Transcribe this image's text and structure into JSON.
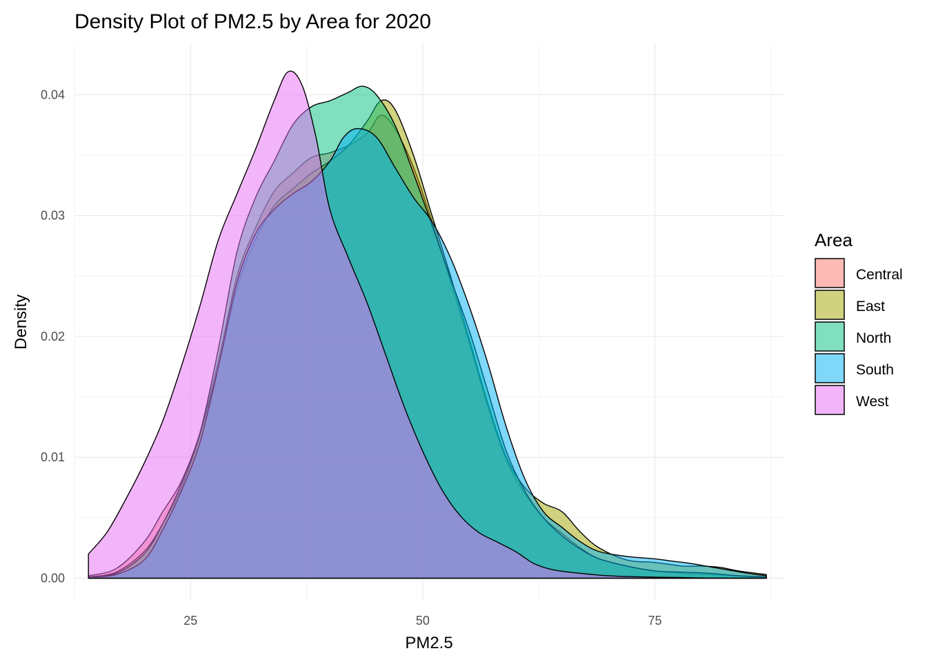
{
  "chart_data": {
    "type": "area",
    "title": "Density Plot of PM2.5 by Area for 2020",
    "xlabel": "PM2.5",
    "ylabel": "Density",
    "xlim": [
      12.5,
      89.0
    ],
    "ylim": [
      -0.0018,
      0.0443
    ],
    "x_major_ticks": [
      25,
      50,
      75
    ],
    "x_tick_labels": [
      "25",
      "50",
      "75"
    ],
    "y_major_ticks": [
      0.0,
      0.01,
      0.02,
      0.03,
      0.04
    ],
    "y_tick_labels": [
      "0.00",
      "0.01",
      "0.02",
      "0.03",
      "0.04"
    ],
    "grid": true,
    "legend": {
      "title": "Area",
      "position": "right"
    },
    "series": [
      {
        "name": "Central",
        "color": "#F8766D",
        "points": [
          [
            14,
            0.0002
          ],
          [
            17,
            0.0008
          ],
          [
            20,
            0.003
          ],
          [
            22,
            0.0055
          ],
          [
            24,
            0.008
          ],
          [
            26,
            0.012
          ],
          [
            28,
            0.018
          ],
          [
            30,
            0.025
          ],
          [
            32,
            0.029
          ],
          [
            34,
            0.032
          ],
          [
            36,
            0.0335
          ],
          [
            38,
            0.0348
          ],
          [
            40,
            0.0352
          ],
          [
            42,
            0.0358
          ],
          [
            44,
            0.0368
          ],
          [
            45.5,
            0.0383
          ],
          [
            47,
            0.0372
          ],
          [
            49,
            0.034
          ],
          [
            51,
            0.0295
          ],
          [
            53,
            0.0245
          ],
          [
            55,
            0.0195
          ],
          [
            57,
            0.0142
          ],
          [
            59,
            0.0098
          ],
          [
            61,
            0.007
          ],
          [
            63,
            0.005
          ],
          [
            65,
            0.0037
          ],
          [
            67,
            0.0025
          ],
          [
            69,
            0.0016
          ],
          [
            72,
            0.001
          ],
          [
            75,
            0.0006
          ],
          [
            78,
            0.0004
          ],
          [
            81,
            0.0003
          ],
          [
            84,
            0.0002
          ],
          [
            87,
            0.0001
          ]
        ]
      },
      {
        "name": "East",
        "color": "#A3A500",
        "points": [
          [
            14,
            0.0001
          ],
          [
            17,
            0.0005
          ],
          [
            20,
            0.0022
          ],
          [
            22,
            0.0045
          ],
          [
            24,
            0.0075
          ],
          [
            26,
            0.0118
          ],
          [
            28,
            0.0175
          ],
          [
            30,
            0.024
          ],
          [
            32,
            0.028
          ],
          [
            34,
            0.0308
          ],
          [
            36,
            0.0322
          ],
          [
            38,
            0.0335
          ],
          [
            40,
            0.0345
          ],
          [
            42,
            0.0358
          ],
          [
            44,
            0.0378
          ],
          [
            45.5,
            0.0395
          ],
          [
            47,
            0.0388
          ],
          [
            49,
            0.035
          ],
          [
            51,
            0.03
          ],
          [
            53,
            0.025
          ],
          [
            55,
            0.0198
          ],
          [
            57,
            0.0145
          ],
          [
            59,
            0.01
          ],
          [
            61,
            0.0075
          ],
          [
            63,
            0.0062
          ],
          [
            65,
            0.0055
          ],
          [
            67,
            0.0038
          ],
          [
            69,
            0.0025
          ],
          [
            72,
            0.0015
          ],
          [
            75,
            0.0013
          ],
          [
            78,
            0.001
          ],
          [
            80,
            0.001
          ],
          [
            82,
            0.0009
          ],
          [
            84,
            0.0006
          ],
          [
            87,
            0.0003
          ]
        ]
      },
      {
        "name": "North",
        "color": "#00BF7D",
        "points": [
          [
            14,
            0.0001
          ],
          [
            17,
            0.0004
          ],
          [
            20,
            0.002
          ],
          [
            22,
            0.0045
          ],
          [
            24,
            0.0078
          ],
          [
            26,
            0.012
          ],
          [
            28,
            0.019
          ],
          [
            30,
            0.027
          ],
          [
            32,
            0.0315
          ],
          [
            34,
            0.0345
          ],
          [
            36,
            0.0375
          ],
          [
            38,
            0.039
          ],
          [
            40,
            0.0395
          ],
          [
            42,
            0.0402
          ],
          [
            43.5,
            0.0407
          ],
          [
            45,
            0.04
          ],
          [
            47,
            0.0375
          ],
          [
            49,
            0.0335
          ],
          [
            51,
            0.0292
          ],
          [
            53,
            0.0248
          ],
          [
            55,
            0.0205
          ],
          [
            57,
            0.0155
          ],
          [
            59,
            0.0105
          ],
          [
            61,
            0.0072
          ],
          [
            63,
            0.005
          ],
          [
            65,
            0.0035
          ],
          [
            67,
            0.0024
          ],
          [
            69,
            0.0016
          ],
          [
            72,
            0.001
          ],
          [
            75,
            0.0006
          ],
          [
            78,
            0.0005
          ],
          [
            81,
            0.0004
          ],
          [
            84,
            0.0002
          ],
          [
            87,
            0.0001
          ]
        ]
      },
      {
        "name": "South",
        "color": "#00B0F6",
        "points": [
          [
            14,
            0.0001
          ],
          [
            17,
            0.0003
          ],
          [
            20,
            0.0015
          ],
          [
            22,
            0.004
          ],
          [
            24,
            0.0072
          ],
          [
            26,
            0.0112
          ],
          [
            28,
            0.0175
          ],
          [
            30,
            0.0245
          ],
          [
            32,
            0.0285
          ],
          [
            34,
            0.0305
          ],
          [
            36,
            0.0318
          ],
          [
            38,
            0.0328
          ],
          [
            40,
            0.0345
          ],
          [
            41.5,
            0.0365
          ],
          [
            43,
            0.0372
          ],
          [
            45,
            0.0365
          ],
          [
            47,
            0.034
          ],
          [
            49,
            0.0315
          ],
          [
            51,
            0.0295
          ],
          [
            53,
            0.0265
          ],
          [
            55,
            0.0225
          ],
          [
            57,
            0.0178
          ],
          [
            59,
            0.0125
          ],
          [
            61,
            0.0082
          ],
          [
            63,
            0.0055
          ],
          [
            65,
            0.0042
          ],
          [
            67,
            0.003
          ],
          [
            69,
            0.0022
          ],
          [
            72,
            0.0018
          ],
          [
            75,
            0.0016
          ],
          [
            77,
            0.0014
          ],
          [
            79,
            0.0012
          ],
          [
            82,
            0.0008
          ],
          [
            85,
            0.0004
          ],
          [
            87,
            0.0002
          ]
        ]
      },
      {
        "name": "West",
        "color": "#E76BF3",
        "points": [
          [
            14,
            0.002
          ],
          [
            16,
            0.0038
          ],
          [
            18,
            0.0065
          ],
          [
            20,
            0.0095
          ],
          [
            22,
            0.013
          ],
          [
            24,
            0.0175
          ],
          [
            26,
            0.0225
          ],
          [
            28,
            0.028
          ],
          [
            30,
            0.0318
          ],
          [
            32,
            0.0355
          ],
          [
            34,
            0.0395
          ],
          [
            35.5,
            0.0419
          ],
          [
            37,
            0.0408
          ],
          [
            38.5,
            0.0365
          ],
          [
            40,
            0.0305
          ],
          [
            42,
            0.0265
          ],
          [
            44,
            0.0228
          ],
          [
            46,
            0.0185
          ],
          [
            48,
            0.0142
          ],
          [
            50,
            0.0105
          ],
          [
            52,
            0.0074
          ],
          [
            54,
            0.0052
          ],
          [
            56,
            0.0038
          ],
          [
            58,
            0.003
          ],
          [
            60,
            0.0022
          ],
          [
            62,
            0.0012
          ],
          [
            64,
            0.0007
          ],
          [
            67,
            0.0004
          ],
          [
            70,
            0.0002
          ],
          [
            74,
            0.0001
          ],
          [
            78,
            5e-05
          ],
          [
            82,
            0.0
          ],
          [
            87,
            0.0
          ]
        ]
      }
    ]
  }
}
